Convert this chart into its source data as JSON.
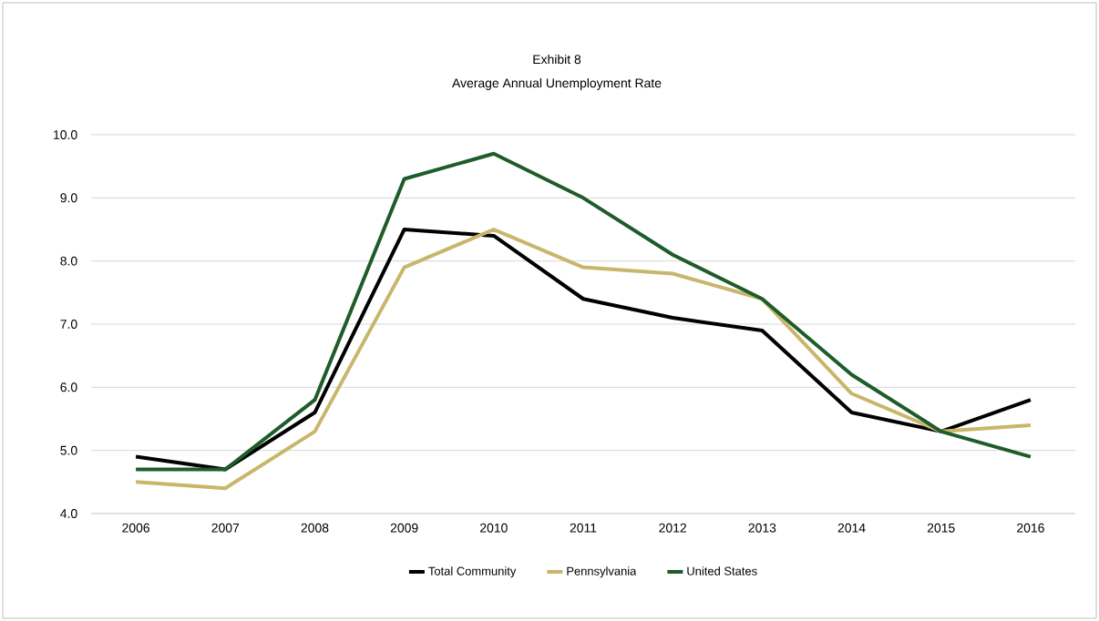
{
  "chart_data": {
    "type": "line",
    "title": "Exhibit 8",
    "subtitle": "Average Annual Unemployment Rate",
    "categories": [
      "2006",
      "2007",
      "2008",
      "2009",
      "2010",
      "2011",
      "2012",
      "2013",
      "2014",
      "2015",
      "2016"
    ],
    "series": [
      {
        "name": "Total Community",
        "color": "#000000",
        "values": [
          4.9,
          4.7,
          5.6,
          8.5,
          8.4,
          7.4,
          7.1,
          6.9,
          5.6,
          5.3,
          5.8
        ]
      },
      {
        "name": "Pennsylvania",
        "color": "#c9b66b",
        "values": [
          4.5,
          4.4,
          5.3,
          7.9,
          8.5,
          7.9,
          7.8,
          7.4,
          5.9,
          5.3,
          5.4
        ]
      },
      {
        "name": "United States",
        "color": "#1e5c2a",
        "values": [
          4.7,
          4.7,
          5.8,
          9.3,
          9.7,
          9.0,
          8.1,
          7.4,
          6.2,
          5.3,
          4.9
        ]
      }
    ],
    "ylim": [
      4,
      10
    ],
    "yticks": [
      {
        "value": 4,
        "label": "4.0"
      },
      {
        "value": 5,
        "label": "5.0"
      },
      {
        "value": 6,
        "label": "6.0"
      },
      {
        "value": 7,
        "label": "7.0"
      },
      {
        "value": 8,
        "label": "8.0"
      },
      {
        "value": 9,
        "label": "9.0"
      },
      {
        "value": 10,
        "label": "10.0"
      }
    ],
    "grid": "y",
    "legend": "bottom",
    "marker": "none",
    "line_style": "solid"
  }
}
